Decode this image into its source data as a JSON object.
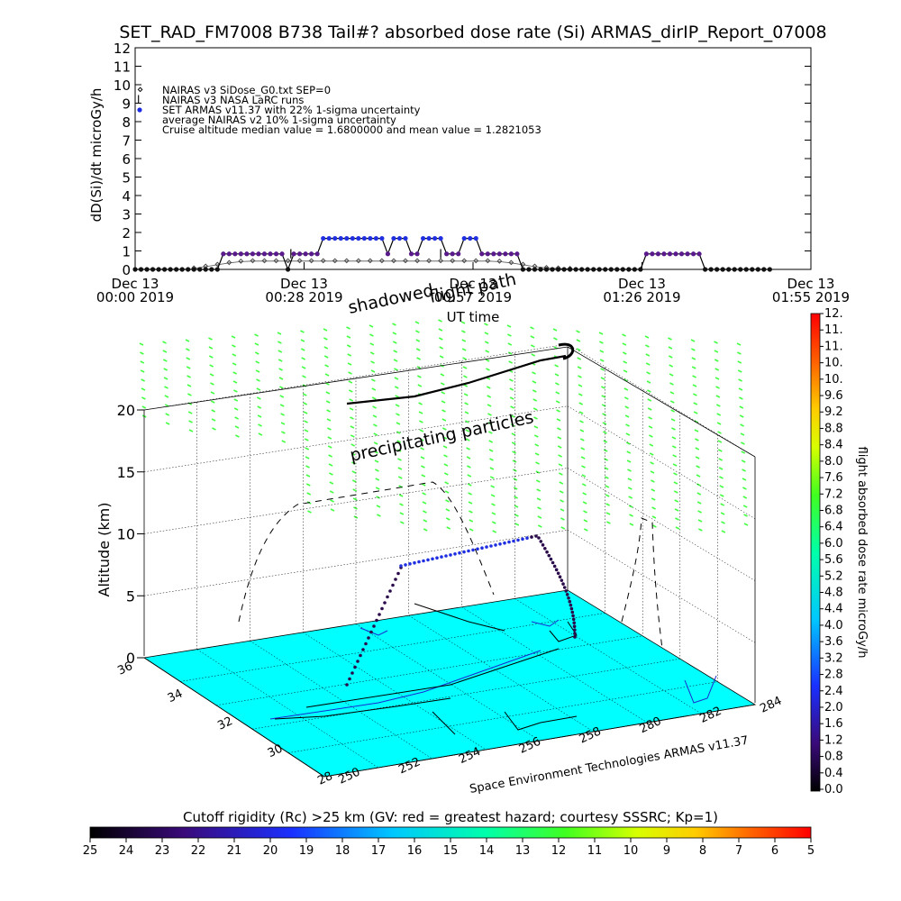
{
  "chart_data": [
    {
      "type": "line",
      "title": "SET_RAD_FM7008  B738 Tail#? absorbed dose rate (Si) ARMAS_dirIP_Report_07008",
      "ylabel": "dD(Si)/dt microGy/h",
      "xlabel": "UT time",
      "ylim": [
        0,
        12
      ],
      "yticks": [
        "0",
        "1",
        "2",
        "3",
        "4",
        "5",
        "6",
        "7",
        "8",
        "9",
        "10",
        "11",
        "12"
      ],
      "xlim_minutes": [
        0,
        115
      ],
      "xticks": [
        {
          "t": 0,
          "line1": "Dec 13",
          "line2": "00:00 2019"
        },
        {
          "t": 28.75,
          "line1": "Dec 13",
          "line2": "00:28 2019"
        },
        {
          "t": 57.5,
          "line1": "Dec 13",
          "line2": "00:57 2019"
        },
        {
          "t": 86.25,
          "line1": "Dec 13",
          "line2": "01:26 2019"
        },
        {
          "t": 115,
          "line1": "Dec 13",
          "line2": "01:55 2019"
        }
      ],
      "legend": [
        "NAIRAS v3 SiDose_G0.txt SEP=0",
        "NAIRAS v3 NASA LaRC runs",
        "SET ARMAS v11.37 with 22% 1-sigma uncertainty",
        "average NAIRAS v2 10% 1-sigma uncertainty",
        "Cruise altitude median value = 1.6800000 and mean value = 1.2821053"
      ],
      "series": [
        {
          "name": "SET ARMAS v11.37 with 22% 1-sigma uncertainty",
          "points": [
            [
              0,
              0
            ],
            [
              1,
              0
            ],
            [
              2,
              0
            ],
            [
              3,
              0
            ],
            [
              4,
              0
            ],
            [
              5,
              0
            ],
            [
              6,
              0
            ],
            [
              7,
              0
            ],
            [
              8,
              0
            ],
            [
              9,
              0
            ],
            [
              10,
              0
            ],
            [
              11,
              0
            ],
            [
              12,
              0
            ],
            [
              13,
              0
            ],
            [
              14,
              0
            ],
            [
              15,
              0.84
            ],
            [
              16,
              0.84
            ],
            [
              17,
              0.84
            ],
            [
              18,
              0.84
            ],
            [
              19,
              0.84
            ],
            [
              20,
              0.84
            ],
            [
              21,
              0.84
            ],
            [
              22,
              0.84
            ],
            [
              23,
              0.84
            ],
            [
              24,
              0.84
            ],
            [
              25,
              0.84
            ],
            [
              26,
              0
            ],
            [
              27,
              0.84
            ],
            [
              28,
              0.84
            ],
            [
              29,
              0.84
            ],
            [
              30,
              0.84
            ],
            [
              31,
              0.84
            ],
            [
              32,
              1.68
            ],
            [
              33,
              1.68
            ],
            [
              34,
              1.68
            ],
            [
              35,
              1.68
            ],
            [
              36,
              1.68
            ],
            [
              37,
              1.68
            ],
            [
              38,
              1.68
            ],
            [
              39,
              1.68
            ],
            [
              40,
              1.68
            ],
            [
              41,
              1.68
            ],
            [
              42,
              1.68
            ],
            [
              43,
              0.84
            ],
            [
              44,
              1.68
            ],
            [
              45,
              1.68
            ],
            [
              46,
              1.68
            ],
            [
              47,
              0.84
            ],
            [
              48,
              0.84
            ],
            [
              49,
              1.68
            ],
            [
              50,
              1.68
            ],
            [
              51,
              1.68
            ],
            [
              52,
              1.68
            ],
            [
              53,
              0.84
            ],
            [
              54,
              0.84
            ],
            [
              55,
              0.84
            ],
            [
              56,
              1.68
            ],
            [
              57,
              1.68
            ],
            [
              58,
              1.68
            ],
            [
              59,
              0.84
            ],
            [
              60,
              0.84
            ],
            [
              61,
              0.84
            ],
            [
              62,
              0.84
            ],
            [
              63,
              0.84
            ],
            [
              64,
              0.84
            ],
            [
              65,
              0.84
            ],
            [
              66,
              0
            ],
            [
              67,
              0
            ],
            [
              68,
              0
            ],
            [
              69,
              0
            ],
            [
              70,
              0
            ],
            [
              71,
              0
            ],
            [
              72,
              0
            ],
            [
              73,
              0
            ],
            [
              74,
              0
            ],
            [
              75,
              0
            ],
            [
              76,
              0
            ],
            [
              77,
              0
            ],
            [
              78,
              0
            ],
            [
              79,
              0
            ],
            [
              80,
              0
            ],
            [
              81,
              0
            ],
            [
              82,
              0
            ],
            [
              83,
              0
            ],
            [
              84,
              0
            ],
            [
              85,
              0
            ],
            [
              86,
              0
            ],
            [
              87,
              0.84
            ],
            [
              88,
              0.84
            ],
            [
              89,
              0.84
            ],
            [
              90,
              0.84
            ],
            [
              91,
              0.84
            ],
            [
              92,
              0.84
            ],
            [
              93,
              0.84
            ],
            [
              94,
              0.84
            ],
            [
              95,
              0.84
            ],
            [
              96,
              0.84
            ],
            [
              97,
              0
            ],
            [
              98,
              0
            ],
            [
              99,
              0
            ],
            [
              100,
              0
            ],
            [
              101,
              0
            ],
            [
              102,
              0
            ],
            [
              103,
              0
            ],
            [
              104,
              0
            ],
            [
              105,
              0
            ],
            [
              106,
              0
            ],
            [
              107,
              0
            ],
            [
              108,
              0
            ]
          ]
        },
        {
          "name": "NAIRAS v3 SiDose_G0.txt SEP=0",
          "points": [
            [
              10,
              0.05
            ],
            [
              12,
              0.15
            ],
            [
              14,
              0.25
            ],
            [
              16,
              0.35
            ],
            [
              18,
              0.42
            ],
            [
              20,
              0.45
            ],
            [
              22,
              0.45
            ],
            [
              24,
              0.45
            ],
            [
              26,
              0.45
            ],
            [
              28,
              0.45
            ],
            [
              30,
              0.45
            ],
            [
              32,
              0.45
            ],
            [
              34,
              0.45
            ],
            [
              36,
              0.45
            ],
            [
              38,
              0.45
            ],
            [
              40,
              0.45
            ],
            [
              42,
              0.45
            ],
            [
              44,
              0.45
            ],
            [
              46,
              0.45
            ],
            [
              48,
              0.45
            ],
            [
              50,
              0.45
            ],
            [
              52,
              0.45
            ],
            [
              54,
              0.45
            ],
            [
              56,
              0.45
            ],
            [
              58,
              0.45
            ],
            [
              60,
              0.45
            ],
            [
              62,
              0.42
            ],
            [
              64,
              0.35
            ],
            [
              66,
              0.25
            ],
            [
              68,
              0.15
            ],
            [
              70,
              0.08
            ],
            [
              72,
              0.05
            ],
            [
              74,
              0.03
            ]
          ]
        }
      ]
    },
    {
      "type": "scatter",
      "title": "",
      "zlabel": "Altitude (km)",
      "zlim": [
        0,
        20
      ],
      "zticks": [
        "0",
        "5",
        "10",
        "15",
        "20"
      ],
      "lat_ticks": [
        "36",
        "34",
        "32",
        "30",
        "28"
      ],
      "lon_ticks": [
        "250",
        "252",
        "254",
        "256",
        "258",
        "280",
        "282",
        "284"
      ],
      "annotations": [
        "shadowed",
        "flight path",
        "precipitating particles"
      ],
      "credit": "Space Environment Technologies ARMAS v11.37",
      "colorbar": {
        "label": "flight absorbed dose rate microGy/h",
        "ticks": [
          "0.0",
          "0.4",
          "0.8",
          "1.2",
          "1.6",
          "2.0",
          "2.4",
          "2.8",
          "3.2",
          "3.6",
          "4.0",
          "4.4",
          "4.8",
          "5.2",
          "5.6",
          "6.0",
          "6.4",
          "6.8",
          "7.2",
          "7.6",
          "8.0",
          "8.4",
          "8.8",
          "9.2",
          "9.6",
          "10.",
          "10.",
          "11.",
          "11.",
          "12."
        ]
      }
    },
    {
      "type": "heatmap",
      "title": "Cutoff rigidity (Rc) >25 km (GV: red = greatest hazard; courtesy SSSRC; Kp=1)",
      "ticks": [
        "25",
        "24",
        "23",
        "22",
        "21",
        "20",
        "19",
        "18",
        "17",
        "16",
        "15",
        "14",
        "13",
        "12",
        "11",
        "10",
        "9",
        "8",
        "7",
        "6",
        "5"
      ]
    }
  ],
  "colors": {
    "armas_low": "#5a1a8c",
    "armas_high": "#2030e0",
    "surface": "#00ffff",
    "particles": "#44ff44",
    "nairas": "#555555"
  }
}
